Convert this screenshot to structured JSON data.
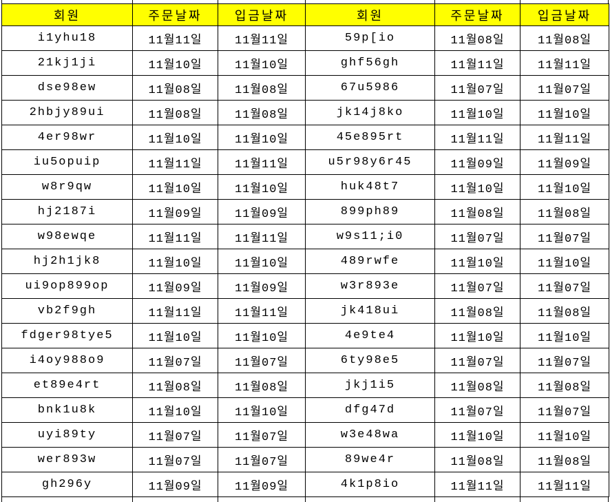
{
  "colors": {
    "header_bg": "#ffff00",
    "border": "#000000",
    "text": "#000000"
  },
  "table": {
    "headers": [
      "회원",
      "주문날짜",
      "입금날짜",
      "회원",
      "주문날짜",
      "입금날짜"
    ],
    "rows": [
      [
        "i1yhu18",
        "11월11일",
        "11월11일",
        "59p[io",
        "11월08일",
        "11월08일"
      ],
      [
        "21kj1ji",
        "11월10일",
        "11월10일",
        "ghf56gh",
        "11월11일",
        "11월11일"
      ],
      [
        "dse98ew",
        "11월08일",
        "11월08일",
        "67u5986",
        "11월07일",
        "11월07일"
      ],
      [
        "2hbjy89ui",
        "11월08일",
        "11월08일",
        "jk14j8ko",
        "11월10일",
        "11월10일"
      ],
      [
        "4er98wr",
        "11월10일",
        "11월10일",
        "45e895rt",
        "11월11일",
        "11월11일"
      ],
      [
        "iu5opuip",
        "11월11일",
        "11월11일",
        "u5r98y6r45",
        "11월09일",
        "11월09일"
      ],
      [
        "w8r9qw",
        "11월10일",
        "11월10일",
        "huk48t7",
        "11월10일",
        "11월10일"
      ],
      [
        "hj2187i",
        "11월09일",
        "11월09일",
        "899ph89",
        "11월08일",
        "11월08일"
      ],
      [
        "w98ewqe",
        "11월11일",
        "11월11일",
        "w9s11;i0",
        "11월07일",
        "11월07일"
      ],
      [
        "hj2h1jk8",
        "11월10일",
        "11월10일",
        "489rwfe",
        "11월10일",
        "11월10일"
      ],
      [
        "ui9op899op",
        "11월09일",
        "11월09일",
        "w3r893e",
        "11월07일",
        "11월07일"
      ],
      [
        "vb2f9gh",
        "11월11일",
        "11월11일",
        "jk418ui",
        "11월08일",
        "11월08일"
      ],
      [
        "fdger98tye5",
        "11월10일",
        "11월10일",
        "4e9te4",
        "11월10일",
        "11월10일"
      ],
      [
        "i4oy988o9",
        "11월07일",
        "11월07일",
        "6ty98e5",
        "11월07일",
        "11월07일"
      ],
      [
        "et89e4rt",
        "11월08일",
        "11월08일",
        "jkj1i5",
        "11월08일",
        "11월08일"
      ],
      [
        "bnk1u8k",
        "11월10일",
        "11월10일",
        "dfg47d",
        "11월07일",
        "11월07일"
      ],
      [
        "uyi89ty",
        "11월07일",
        "11월07일",
        "w3e48wa",
        "11월10일",
        "11월10일"
      ],
      [
        "wer893w",
        "11월07일",
        "11월07일",
        "89we4r",
        "11월08일",
        "11월08일"
      ],
      [
        "gh296y",
        "11월09일",
        "11월09일",
        "4k1p8io",
        "11월11일",
        "11월11일"
      ]
    ]
  }
}
